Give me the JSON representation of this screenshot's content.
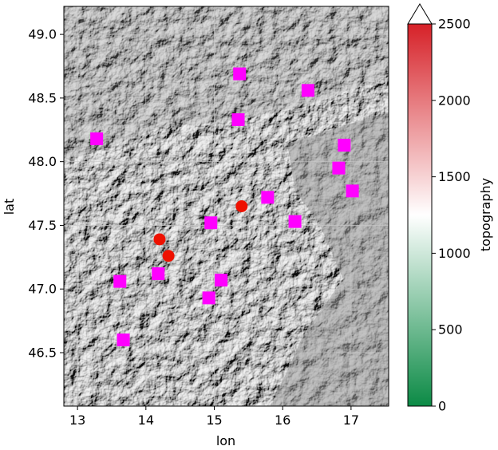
{
  "chart_data": {
    "type": "scatter",
    "xlabel": "lon",
    "ylabel": "lat",
    "xlim": [
      12.8,
      17.55
    ],
    "ylim": [
      46.08,
      49.22
    ],
    "xticks": [
      13,
      14,
      15,
      16,
      17
    ],
    "xtick_labels": [
      "13",
      "14",
      "15",
      "16",
      "17"
    ],
    "yticks": [
      46.5,
      47.0,
      47.5,
      48.0,
      48.5,
      49.0
    ],
    "ytick_labels": [
      "46.5",
      "47.0",
      "47.5",
      "48.0",
      "48.5",
      "49.0"
    ],
    "grid": true,
    "background": "grayscale shaded-relief topography map",
    "series": [
      {
        "marker": "square",
        "color": "#ff00ff",
        "points": [
          [
            13.28,
            48.18
          ],
          [
            15.37,
            48.69
          ],
          [
            16.37,
            48.56
          ],
          [
            15.35,
            48.33
          ],
          [
            16.9,
            48.13
          ],
          [
            16.82,
            47.95
          ],
          [
            17.02,
            47.77
          ],
          [
            15.78,
            47.72
          ],
          [
            16.18,
            47.53
          ],
          [
            14.95,
            47.52
          ],
          [
            14.18,
            47.12
          ],
          [
            15.1,
            47.07
          ],
          [
            13.62,
            47.06
          ],
          [
            14.92,
            46.93
          ],
          [
            13.67,
            46.6
          ]
        ]
      },
      {
        "marker": "circle",
        "color": "#ee1100",
        "points": [
          [
            15.4,
            47.65
          ],
          [
            14.2,
            47.39
          ],
          [
            14.33,
            47.26
          ]
        ]
      }
    ],
    "colorbar": {
      "label": "topography",
      "range": [
        0,
        2500
      ],
      "extend": "max",
      "ticks": [
        0,
        500,
        1000,
        1500,
        2000,
        2500
      ],
      "tick_labels": [
        "0",
        "500",
        "1000",
        "1500",
        "2000",
        "2500"
      ],
      "colors": [
        "#0b8a45",
        "#ffffff",
        "#d62128"
      ]
    }
  }
}
